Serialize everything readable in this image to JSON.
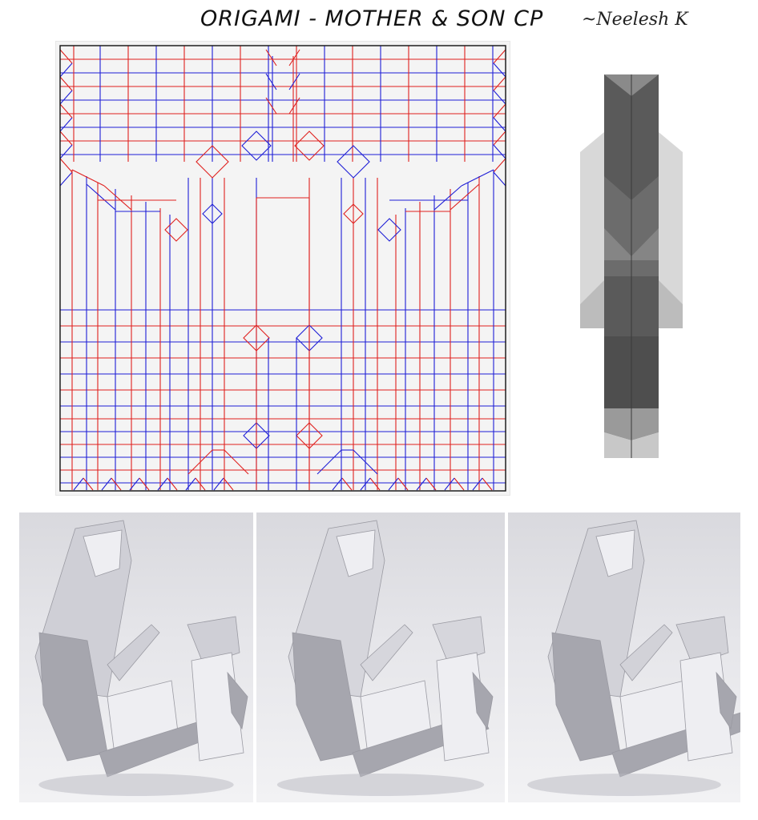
{
  "header": {
    "title": "ORIGAMI - MOTHER & SON CP",
    "author": "~Neelesh K"
  },
  "crease_pattern": {
    "mountain_color": "#e0201e",
    "valley_color": "#1e1ed6",
    "border_color": "#111111",
    "paper_color": "#f4f4f4"
  },
  "base_diagram": {
    "shades": [
      "#d8d8d8",
      "#9a9a9a",
      "#5a5a5a",
      "#bcbcbc"
    ]
  },
  "photos": [
    {
      "id": "photo-1"
    },
    {
      "id": "photo-2"
    },
    {
      "id": "photo-3"
    }
  ]
}
